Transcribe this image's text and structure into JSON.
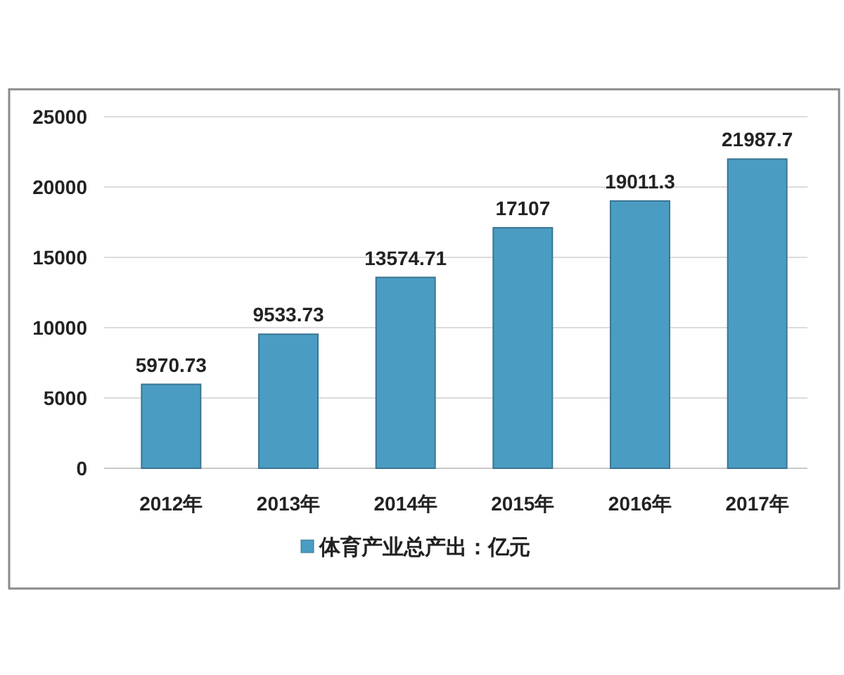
{
  "chart_data": {
    "type": "bar",
    "categories": [
      "2012年",
      "2013年",
      "2014年",
      "2015年",
      "2016年",
      "2017年"
    ],
    "series": [
      {
        "name": "体育产业总产出：亿元",
        "color": "#4a9cc2",
        "values": [
          5970.73,
          9533.73,
          13574.71,
          17107,
          19011.3,
          21987.7
        ]
      }
    ],
    "ylim": [
      0,
      25000
    ],
    "yticks": [
      0,
      5000,
      10000,
      15000,
      20000,
      25000
    ],
    "grid": "y",
    "legend": "bottom",
    "data_labels": true
  }
}
